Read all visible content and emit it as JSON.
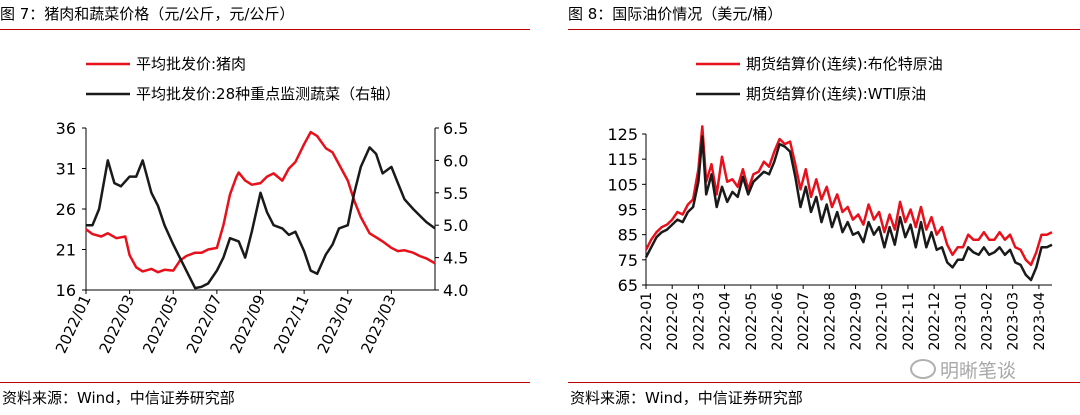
{
  "left": {
    "title": "图 7：猪肉和蔬菜价格（元/公斤，元/公斤）",
    "source": "资料来源：Wind，中信证券研究部"
  },
  "right": {
    "title": "图 8：国际油价情况（美元/桶）",
    "source": "资料来源：Wind，中信证券研究部"
  },
  "watermark": "明晰笔谈",
  "chart_data": [
    {
      "type": "line",
      "x_ticks": [
        "2022/01",
        "2022/03",
        "2022/05",
        "2022/07",
        "2022/09",
        "2022/11",
        "2023/01",
        "2023/03"
      ],
      "y_left": {
        "ticks": [
          "16",
          "21",
          "26",
          "31",
          "36"
        ],
        "range": [
          16,
          36
        ]
      },
      "y_right": {
        "ticks": [
          "4.0",
          "4.5",
          "5.0",
          "5.5",
          "6.0",
          "6.5"
        ],
        "range": [
          4.0,
          6.5
        ]
      },
      "legend_placement": "top-left",
      "series": [
        {
          "name": "平均批发价:猪肉",
          "axis": "left",
          "color": "#e8101b",
          "x": [
            0,
            0.3,
            0.7,
            1,
            1.4,
            1.8,
            2,
            2.3,
            2.6,
            3,
            3.3,
            3.6,
            4,
            4.3,
            4.6,
            5,
            5.3,
            5.6,
            6,
            6.3,
            6.6,
            6.9,
            7,
            7.3,
            7.6,
            8,
            8.3,
            8.6,
            9,
            9.3,
            9.6,
            10,
            10.3,
            10.6,
            11,
            11.3,
            11.6,
            12,
            12.3,
            12.6,
            13,
            13.3,
            13.6,
            14,
            14.3,
            14.6,
            15,
            15.3,
            15.6,
            16
          ],
          "values": [
            23.5,
            22.9,
            22.6,
            23.0,
            22.4,
            22.6,
            20.3,
            18.8,
            18.3,
            18.6,
            18.2,
            18.5,
            18.4,
            19.6,
            20.2,
            20.6,
            20.6,
            21.0,
            21.2,
            24.0,
            27.8,
            30.0,
            30.5,
            29.5,
            29.0,
            29.2,
            30.0,
            30.4,
            29.5,
            31.0,
            31.8,
            34.0,
            35.5,
            35.0,
            33.5,
            33.0,
            31.5,
            29.5,
            27.0,
            25.0,
            23.0,
            22.5,
            22.0,
            21.2,
            20.8,
            20.9,
            20.6,
            20.2,
            19.9,
            19.3
          ]
        },
        {
          "name": "平均批发价:28种重点监测蔬菜（右轴）",
          "axis": "right",
          "color": "#1a1a1a",
          "x": [
            0,
            0.3,
            0.6,
            1,
            1.3,
            1.6,
            2,
            2.3,
            2.6,
            3,
            3.3,
            3.6,
            4,
            4.3,
            4.6,
            5,
            5.3,
            5.6,
            6,
            6.3,
            6.6,
            7,
            7.3,
            7.6,
            8,
            8.3,
            8.6,
            9,
            9.3,
            9.6,
            10,
            10.3,
            10.6,
            11,
            11.3,
            11.6,
            12,
            12.3,
            12.6,
            13,
            13.3,
            13.6,
            14,
            14.3,
            14.6,
            15,
            15.3,
            15.6,
            16
          ],
          "values": [
            5.0,
            5.0,
            5.25,
            6.0,
            5.65,
            5.6,
            5.75,
            5.75,
            6.0,
            5.5,
            5.3,
            5.0,
            4.7,
            4.5,
            4.3,
            4.03,
            4.05,
            4.1,
            4.3,
            4.5,
            4.8,
            4.75,
            4.5,
            4.9,
            5.5,
            5.2,
            5.0,
            4.95,
            4.85,
            4.9,
            4.6,
            4.3,
            4.25,
            4.55,
            4.7,
            4.95,
            5.0,
            5.5,
            5.9,
            6.2,
            6.1,
            5.8,
            5.9,
            5.65,
            5.4,
            5.25,
            5.15,
            5.05,
            4.95
          ]
        }
      ]
    },
    {
      "type": "line",
      "x_ticks": [
        "2022-01",
        "2022-02",
        "2022-03",
        "2022-04",
        "2022-05",
        "2022-06",
        "2022-07",
        "2022-08",
        "2022-09",
        "2022-10",
        "2022-11",
        "2022-12",
        "2023-01",
        "2023-02",
        "2023-03",
        "2023-04"
      ],
      "y": {
        "ticks": [
          "65",
          "75",
          "85",
          "95",
          "105",
          "115",
          "125"
        ],
        "range": [
          65,
          125
        ]
      },
      "legend_placement": "top-left",
      "series": [
        {
          "name": "期货结算价(连续):布伦特原油",
          "color": "#e8101b",
          "x": [
            0,
            0.2,
            0.4,
            0.6,
            0.8,
            1,
            1.2,
            1.4,
            1.6,
            1.8,
            2,
            2.15,
            2.3,
            2.5,
            2.7,
            2.9,
            3.1,
            3.3,
            3.5,
            3.7,
            3.9,
            4.1,
            4.3,
            4.5,
            4.7,
            4.9,
            5.1,
            5.3,
            5.5,
            5.7,
            5.9,
            6.1,
            6.3,
            6.5,
            6.7,
            6.9,
            7.1,
            7.3,
            7.5,
            7.7,
            7.9,
            8.1,
            8.3,
            8.5,
            8.7,
            8.9,
            9.1,
            9.3,
            9.5,
            9.7,
            9.9,
            10.1,
            10.3,
            10.5,
            10.7,
            10.9,
            11.1,
            11.3,
            11.5,
            11.7,
            11.9,
            12.1,
            12.3,
            12.5,
            12.7,
            12.9,
            13.1,
            13.3,
            13.5,
            13.7,
            13.9,
            14.1,
            14.3,
            14.5,
            14.7,
            14.9,
            15.1,
            15.3,
            15.5
          ],
          "values": [
            79,
            83,
            86,
            88,
            89,
            91,
            94,
            93,
            97,
            99,
            111,
            128,
            106,
            113,
            101,
            116,
            106,
            107,
            104,
            111,
            103,
            109,
            110,
            114,
            112,
            118,
            123,
            121,
            122,
            113,
            103,
            111,
            100,
            107,
            99,
            104,
            96,
            101,
            94,
            96,
            91,
            93,
            89,
            97,
            91,
            94,
            86,
            93,
            87,
            98,
            90,
            95,
            88,
            96,
            87,
            92,
            85,
            88,
            81,
            77,
            80,
            80,
            85,
            83,
            83,
            86,
            83,
            83,
            86,
            83,
            85,
            80,
            79,
            75,
            73,
            78,
            85,
            85,
            86
          ]
        },
        {
          "name": "期货结算价(连续):WTI原油",
          "color": "#1a1a1a",
          "x": [
            0,
            0.2,
            0.4,
            0.6,
            0.8,
            1,
            1.2,
            1.4,
            1.6,
            1.8,
            2,
            2.15,
            2.3,
            2.5,
            2.7,
            2.9,
            3.1,
            3.3,
            3.5,
            3.7,
            3.9,
            4.1,
            4.3,
            4.5,
            4.7,
            4.9,
            5.1,
            5.3,
            5.5,
            5.7,
            5.9,
            6.1,
            6.3,
            6.5,
            6.7,
            6.9,
            7.1,
            7.3,
            7.5,
            7.7,
            7.9,
            8.1,
            8.3,
            8.5,
            8.7,
            8.9,
            9.1,
            9.3,
            9.5,
            9.7,
            9.9,
            10.1,
            10.3,
            10.5,
            10.7,
            10.9,
            11.1,
            11.3,
            11.5,
            11.7,
            11.9,
            12.1,
            12.3,
            12.5,
            12.7,
            12.9,
            13.1,
            13.3,
            13.5,
            13.7,
            13.9,
            14.1,
            14.3,
            14.5,
            14.7,
            14.9,
            15.1,
            15.3,
            15.5
          ],
          "values": [
            76,
            80,
            84,
            86,
            87,
            89,
            91,
            90,
            94,
            96,
            106,
            124,
            101,
            109,
            96,
            104,
            98,
            102,
            100,
            108,
            101,
            106,
            108,
            110,
            109,
            114,
            121,
            120,
            118,
            108,
            96,
            104,
            94,
            100,
            90,
            97,
            88,
            94,
            86,
            90,
            85,
            86,
            82,
            90,
            85,
            88,
            80,
            88,
            81,
            92,
            84,
            89,
            80,
            90,
            80,
            86,
            79,
            80,
            74,
            72,
            75,
            75,
            80,
            78,
            77,
            80,
            77,
            78,
            80,
            77,
            79,
            74,
            73,
            69,
            67,
            72,
            80,
            80,
            81
          ]
        }
      ]
    }
  ]
}
